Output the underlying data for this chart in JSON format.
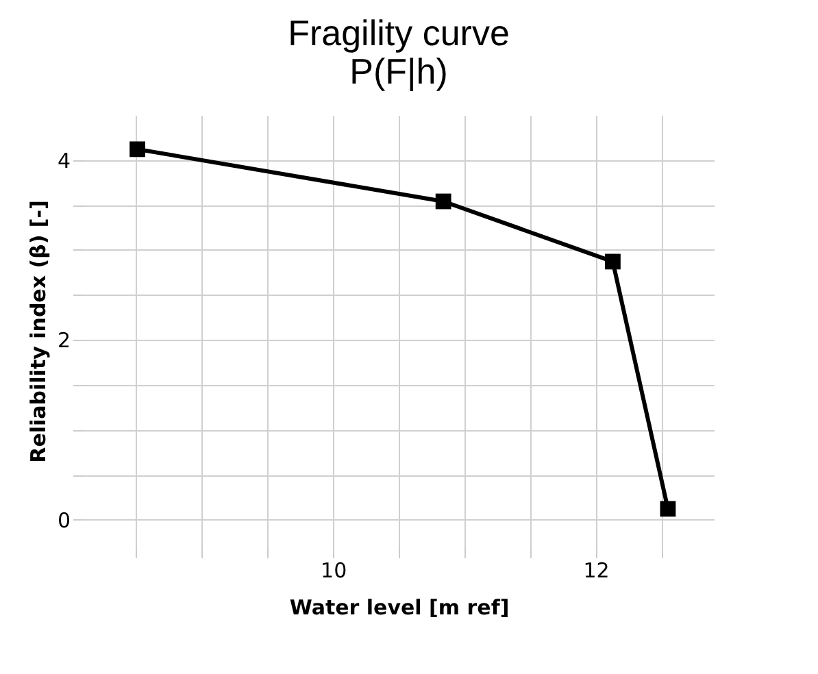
{
  "chart_data": {
    "type": "line",
    "title": "Fragility curve",
    "subtitle": "P(F|h)",
    "xlabel": "Water level [m ref]",
    "ylabel": "Reliability index (β) [-]",
    "x": [
      8.51,
      10.84,
      12.13,
      12.55
    ],
    "series": [
      {
        "color": "#000000",
        "values": [
          4.12,
          3.54,
          2.87,
          0.12
        ]
      }
    ],
    "xlim": [
      8.1,
      12.9
    ],
    "ylim": [
      -0.3,
      4.5
    ],
    "xticks": [
      {
        "value": 8.5,
        "label": null
      },
      {
        "value": 9,
        "label": null
      },
      {
        "value": 9.5,
        "label": null
      },
      10,
      {
        "value": 10.5,
        "label": null
      },
      {
        "value": 11,
        "label": null
      },
      {
        "value": 11.5,
        "label": null
      },
      12,
      {
        "value": 12.5,
        "label": null
      }
    ],
    "yticks": [
      0,
      {
        "value": 0.5,
        "label": null
      },
      {
        "value": 1,
        "label": null
      },
      {
        "value": 1.5,
        "label": null
      },
      2,
      {
        "value": 2.5,
        "label": null
      },
      {
        "value": 3,
        "label": null
      },
      {
        "value": 3.5,
        "label": null
      },
      4
    ],
    "grid": true,
    "marker": "square",
    "line_style": "solid"
  }
}
